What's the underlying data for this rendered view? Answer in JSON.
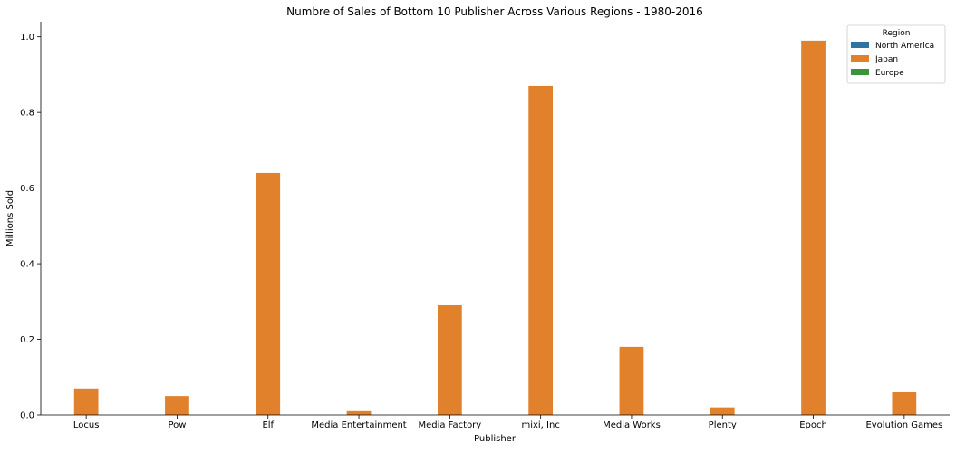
{
  "chart_data": {
    "type": "bar",
    "title": "Numbre of Sales of Bottom 10 Publisher Across Various Regions - 1980-2016",
    "xlabel": "Publisher",
    "ylabel": "Millions Sold",
    "categories": [
      "Locus",
      "Pow",
      "Elf",
      "Media Entertainment",
      "Media Factory",
      "mixi, Inc",
      "Media Works",
      "Plenty",
      "Epoch",
      "Evolution Games"
    ],
    "series": [
      {
        "name": "North America",
        "color": "#3274a1",
        "values": [
          0,
          0,
          0,
          0,
          0,
          0,
          0,
          0,
          0,
          0
        ]
      },
      {
        "name": "Japan",
        "color": "#e1812c",
        "values": [
          0.07,
          0.05,
          0.64,
          0.01,
          0.29,
          0.87,
          0.18,
          0.02,
          0.99,
          0.06
        ]
      },
      {
        "name": "Europe",
        "color": "#3a923a",
        "values": [
          0,
          0,
          0,
          0,
          0,
          0,
          0,
          0,
          0,
          0
        ]
      }
    ],
    "ylim": [
      0,
      1.04
    ],
    "yticks": [
      0.0,
      0.2,
      0.4,
      0.6,
      0.8,
      1.0
    ],
    "ytick_labels": [
      "0.0",
      "0.2",
      "0.4",
      "0.6",
      "0.8",
      "1.0"
    ],
    "grid": false,
    "legend": {
      "title": "Region",
      "placement": "top-right"
    }
  }
}
